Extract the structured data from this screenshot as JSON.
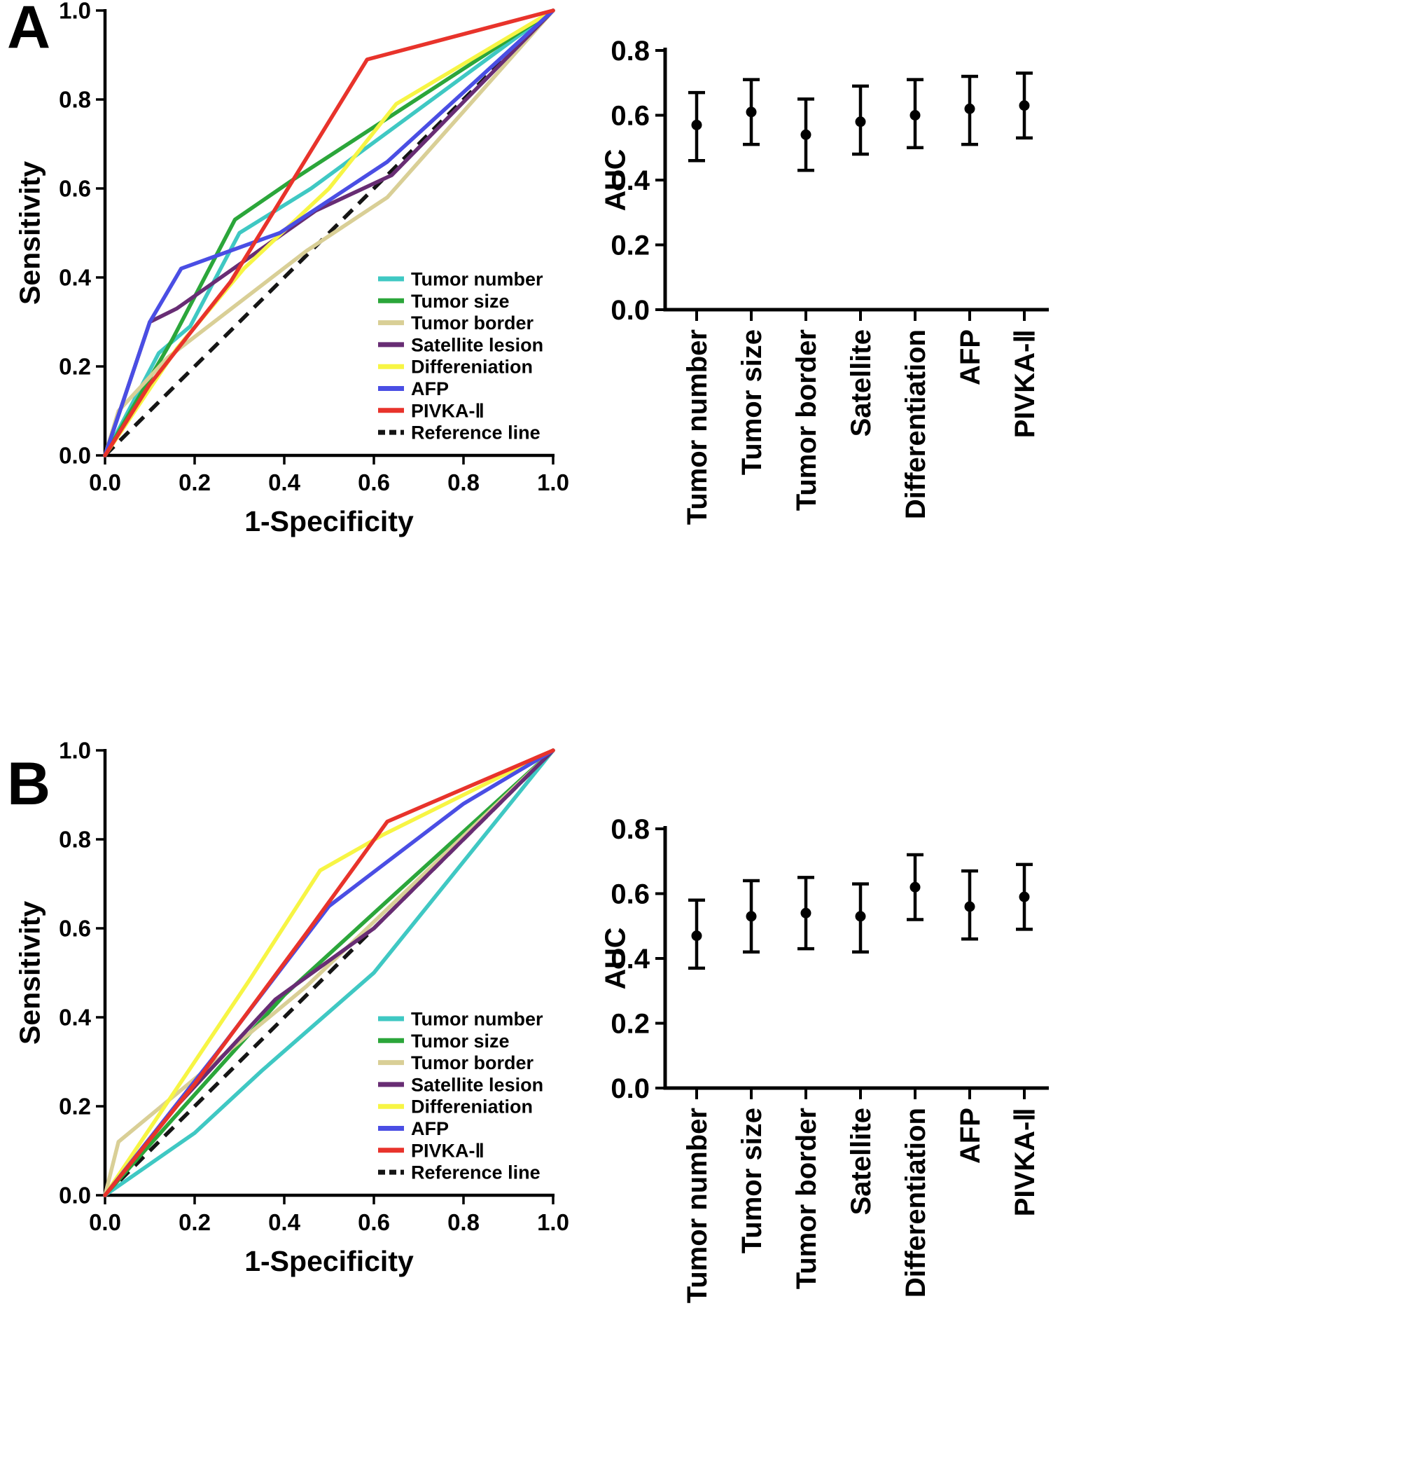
{
  "panel_labels": [
    "A",
    "B"
  ],
  "chart_data": [
    {
      "id": "roc-a",
      "panel": "A",
      "type": "line",
      "xlabel": "1-Specificity",
      "ylabel": "Sensitivity",
      "xlim": [
        0,
        1
      ],
      "ylim": [
        0,
        1
      ],
      "xticks": {
        "values": [
          0,
          0.2,
          0.4,
          0.6,
          0.8,
          1.0
        ],
        "labels": [
          "0.0",
          "0.2",
          "0.4",
          "0.6",
          "0.8",
          "1.0"
        ]
      },
      "yticks": {
        "values": [
          0,
          0.2,
          0.4,
          0.6,
          0.8,
          1.0
        ],
        "labels": [
          "0.0",
          "0.2",
          "0.4",
          "0.6",
          "0.8",
          "1.0"
        ]
      },
      "legend_position": "bottom-right",
      "grid": false,
      "series": [
        {
          "name": "Tumor number",
          "color": "#3fc8c3",
          "points": [
            [
              0,
              0
            ],
            [
              0.12,
              0.23
            ],
            [
              0.19,
              0.29
            ],
            [
              0.3,
              0.5
            ],
            [
              0.46,
              0.6
            ],
            [
              1,
              1
            ]
          ]
        },
        {
          "name": "Tumor size",
          "color": "#2ba63a",
          "points": [
            [
              0,
              0
            ],
            [
              0.15,
              0.26
            ],
            [
              0.29,
              0.53
            ],
            [
              0.42,
              0.62
            ],
            [
              1,
              1
            ]
          ]
        },
        {
          "name": "Tumor border",
          "color": "#d9cf96",
          "points": [
            [
              0,
              0
            ],
            [
              0.03,
              0.1
            ],
            [
              0.14,
              0.22
            ],
            [
              0.45,
              0.46
            ],
            [
              0.63,
              0.58
            ],
            [
              1,
              1
            ]
          ]
        },
        {
          "name": "Satellite lesion",
          "color": "#682d74",
          "points": [
            [
              0,
              0
            ],
            [
              0.1,
              0.3
            ],
            [
              0.16,
              0.33
            ],
            [
              0.47,
              0.55
            ],
            [
              0.64,
              0.63
            ],
            [
              1,
              1
            ]
          ]
        },
        {
          "name": "Differeniation",
          "color": "#f7f544",
          "points": [
            [
              0,
              0
            ],
            [
              0.16,
              0.24
            ],
            [
              0.31,
              0.42
            ],
            [
              0.5,
              0.6
            ],
            [
              0.65,
              0.79
            ],
            [
              1,
              1
            ]
          ]
        },
        {
          "name": "AFP",
          "color": "#4a4ee4",
          "points": [
            [
              0,
              0
            ],
            [
              0.1,
              0.3
            ],
            [
              0.17,
              0.42
            ],
            [
              0.39,
              0.5
            ],
            [
              0.63,
              0.66
            ],
            [
              1,
              1
            ]
          ]
        },
        {
          "name": "PIVKA-Ⅱ",
          "color": "#e8332b",
          "points": [
            [
              0,
              0
            ],
            [
              0.1,
              0.16
            ],
            [
              0.28,
              0.39
            ],
            [
              0.585,
              0.89
            ],
            [
              1,
              1
            ]
          ]
        }
      ],
      "reference": {
        "name": "Reference line",
        "color": "#151515",
        "style": "dashed",
        "points": [
          [
            0,
            0
          ],
          [
            1,
            1
          ]
        ]
      }
    },
    {
      "id": "auc-a",
      "panel": "A",
      "type": "scatter-errorbar",
      "ylabel": "AUC",
      "ylim": [
        0,
        0.8
      ],
      "yticks": {
        "values": [
          0,
          0.2,
          0.4,
          0.6,
          0.8
        ],
        "labels": [
          "0.0",
          "0.2",
          "0.4",
          "0.6",
          "0.8"
        ]
      },
      "categories": [
        "Tumor number",
        "Tumor size",
        "Tumor border",
        "Satellite",
        "Differentiation",
        "AFP",
        "PIVKA-Ⅱ"
      ],
      "points": [
        {
          "mean": 0.57,
          "lo": 0.46,
          "hi": 0.67
        },
        {
          "mean": 0.61,
          "lo": 0.51,
          "hi": 0.71
        },
        {
          "mean": 0.54,
          "lo": 0.43,
          "hi": 0.65
        },
        {
          "mean": 0.58,
          "lo": 0.48,
          "hi": 0.69
        },
        {
          "mean": 0.6,
          "lo": 0.5,
          "hi": 0.71
        },
        {
          "mean": 0.62,
          "lo": 0.51,
          "hi": 0.72
        },
        {
          "mean": 0.63,
          "lo": 0.53,
          "hi": 0.73
        }
      ]
    },
    {
      "id": "roc-b",
      "panel": "B",
      "type": "line",
      "xlabel": "1-Specificity",
      "ylabel": "Sensitivity",
      "xlim": [
        0,
        1
      ],
      "ylim": [
        0,
        1
      ],
      "xticks": {
        "values": [
          0,
          0.2,
          0.4,
          0.6,
          0.8,
          1.0
        ],
        "labels": [
          "0.0",
          "0.2",
          "0.4",
          "0.6",
          "0.8",
          "1.0"
        ]
      },
      "yticks": {
        "values": [
          0,
          0.2,
          0.4,
          0.6,
          0.8,
          1.0
        ],
        "labels": [
          "0.0",
          "0.2",
          "0.4",
          "0.6",
          "0.8",
          "1.0"
        ]
      },
      "legend_position": "bottom-right",
      "grid": false,
      "series": [
        {
          "name": "Tumor number",
          "color": "#3fc8c3",
          "points": [
            [
              0,
              0
            ],
            [
              0.2,
              0.14
            ],
            [
              0.35,
              0.28
            ],
            [
              0.6,
              0.5
            ],
            [
              1,
              1
            ]
          ]
        },
        {
          "name": "Tumor size",
          "color": "#2ba63a",
          "points": [
            [
              0,
              0
            ],
            [
              0.15,
              0.17
            ],
            [
              0.4,
              0.45
            ],
            [
              0.65,
              0.68
            ],
            [
              1,
              1
            ]
          ]
        },
        {
          "name": "Tumor border",
          "color": "#d9cf96",
          "points": [
            [
              0,
              0
            ],
            [
              0.03,
              0.12
            ],
            [
              0.15,
              0.22
            ],
            [
              0.45,
              0.47
            ],
            [
              1,
              1
            ]
          ]
        },
        {
          "name": "Satellite lesion",
          "color": "#682d74",
          "points": [
            [
              0,
              0
            ],
            [
              0.15,
              0.19
            ],
            [
              0.38,
              0.44
            ],
            [
              0.6,
              0.6
            ],
            [
              1,
              1
            ]
          ]
        },
        {
          "name": "Differeniation",
          "color": "#f7f544",
          "points": [
            [
              0,
              0
            ],
            [
              0.12,
              0.18
            ],
            [
              0.32,
              0.48
            ],
            [
              0.48,
              0.73
            ],
            [
              0.62,
              0.81
            ],
            [
              1,
              1
            ]
          ]
        },
        {
          "name": "AFP",
          "color": "#4a4ee4",
          "points": [
            [
              0,
              0
            ],
            [
              0.25,
              0.32
            ],
            [
              0.5,
              0.65
            ],
            [
              0.8,
              0.88
            ],
            [
              1,
              1
            ]
          ]
        },
        {
          "name": "PIVKA-Ⅱ",
          "color": "#e8332b",
          "points": [
            [
              0,
              0
            ],
            [
              0.2,
              0.25
            ],
            [
              0.45,
              0.59
            ],
            [
              0.63,
              0.84
            ],
            [
              1,
              1
            ]
          ]
        }
      ],
      "reference": {
        "name": "Reference line",
        "color": "#151515",
        "style": "dashed",
        "points": [
          [
            0,
            0
          ],
          [
            1,
            1
          ]
        ]
      }
    },
    {
      "id": "auc-b",
      "panel": "B",
      "type": "scatter-errorbar",
      "ylabel": "AUC",
      "ylim": [
        0,
        0.8
      ],
      "yticks": {
        "values": [
          0,
          0.2,
          0.4,
          0.6,
          0.8
        ],
        "labels": [
          "0.0",
          "0.2",
          "0.4",
          "0.6",
          "0.8"
        ]
      },
      "categories": [
        "Tumor number",
        "Tumor size",
        "Tumor border",
        "Satellite",
        "Differentiation",
        "AFP",
        "PIVKA-Ⅱ"
      ],
      "points": [
        {
          "mean": 0.47,
          "lo": 0.37,
          "hi": 0.58
        },
        {
          "mean": 0.53,
          "lo": 0.42,
          "hi": 0.64
        },
        {
          "mean": 0.54,
          "lo": 0.43,
          "hi": 0.65
        },
        {
          "mean": 0.53,
          "lo": 0.42,
          "hi": 0.63
        },
        {
          "mean": 0.62,
          "lo": 0.52,
          "hi": 0.72
        },
        {
          "mean": 0.56,
          "lo": 0.46,
          "hi": 0.67
        },
        {
          "mean": 0.59,
          "lo": 0.49,
          "hi": 0.69
        }
      ]
    }
  ]
}
